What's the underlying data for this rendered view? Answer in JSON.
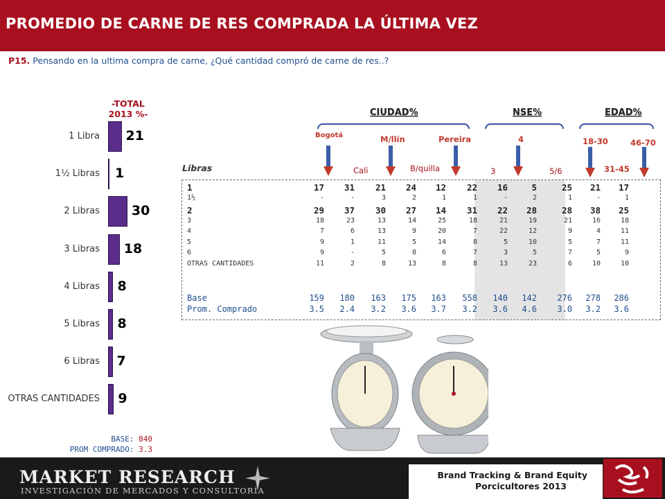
{
  "title": "PROMEDIO DE CARNE DE RES COMPRADA LA ÚLTIMA VEZ",
  "question": {
    "code": "P15.",
    "text": " Pensando en la ultima compra de carne, ¿Qué cantidad compró de carne de res..?"
  },
  "total_header": {
    "line1": "-TOTAL",
    "line2": "2013 %-"
  },
  "base_footer": {
    "base_label": "BASE:",
    "base_value": "840",
    "prom_label": "PROM COMPRADO:",
    "prom_value": "3.3"
  },
  "group_headers": {
    "ciudad": "CIUDAD%",
    "nse": "NSE%",
    "edad": "EDAD%"
  },
  "column_labels": {
    "bogota": "Bogotá",
    "cali": "Cali",
    "medellin": "M/llín",
    "barranquilla": "B/quilla",
    "pereira": "Pereira",
    "nse3": "3",
    "nse4": "4",
    "nse56": "5/6",
    "e1830": "18-30",
    "e3145": "31-45",
    "e4670": "46-70"
  },
  "table_title": "Libras",
  "table": {
    "rows": [
      {
        "label": "1",
        "style": "big",
        "values": [
          "17",
          "31",
          "21",
          "24",
          "12",
          "22",
          "16",
          "5",
          "25",
          "21",
          "17"
        ]
      },
      {
        "label": "1½",
        "style": "small",
        "values": [
          "-",
          "-",
          "3",
          "2",
          "1",
          "1",
          "-",
          "2",
          "1",
          "-",
          "1"
        ]
      },
      {
        "label": "2",
        "style": "big",
        "values": [
          "29",
          "37",
          "30",
          "27",
          "14",
          "31",
          "22",
          "28",
          "28",
          "38",
          "25"
        ]
      },
      {
        "label": "3",
        "style": "small",
        "values": [
          "18",
          "23",
          "13",
          "14",
          "25",
          "18",
          "21",
          "19",
          "21",
          "16",
          "18"
        ]
      },
      {
        "label": "4",
        "style": "small",
        "values": [
          "7",
          "6",
          "13",
          "9",
          "20",
          "7",
          "22",
          "12",
          "9",
          "4",
          "11"
        ]
      },
      {
        "label": "5",
        "style": "small",
        "values": [
          "9",
          "1",
          "11",
          "5",
          "14",
          "8",
          "5",
          "10",
          "5",
          "7",
          "11"
        ]
      },
      {
        "label": "6",
        "style": "small",
        "values": [
          "9",
          "-",
          "5",
          "8",
          "6",
          "7",
          "3",
          "5",
          "7",
          "5",
          "9"
        ]
      },
      {
        "label": "OTRAS CANTIDADES",
        "style": "small",
        "values": [
          "11",
          "2",
          "8",
          "13",
          "8",
          "8",
          "13",
          "23",
          "6",
          "10",
          "10"
        ]
      }
    ],
    "summary": [
      {
        "label": "Base",
        "values": [
          "159",
          "180",
          "163",
          "175",
          "163",
          "558",
          "140",
          "142",
          "276",
          "278",
          "286"
        ]
      },
      {
        "label": "Prom. Comprado",
        "values": [
          "3.5",
          "2.4",
          "3.2",
          "3.6",
          "3.7",
          "3.2",
          "3.6",
          "4.6",
          "3.0",
          "3.2",
          "3.6"
        ]
      }
    ]
  },
  "chart_data": {
    "type": "bar",
    "orientation": "horizontal",
    "title": "-TOTAL 2013 %-",
    "categories": [
      "1 Libra",
      "1½ Libras",
      "2 Libras",
      "3 Libras",
      "4 Libras",
      "5 Libras",
      "6 Libras",
      "OTRAS CANTIDADES"
    ],
    "values": [
      21,
      1,
      30,
      18,
      8,
      8,
      7,
      9
    ],
    "xlim": [
      0,
      32
    ],
    "grid": false,
    "bar_color": "#5a2d8a"
  },
  "footer": {
    "brand": "MARKET RESEARCH",
    "brand_sub": "INVESTIGACIÓN DE MERCADOS Y CONSULTORÍA",
    "tag_line1": "Brand Tracking & Brand Equity",
    "tag_line2": "Porcicultores 2013"
  },
  "colors": {
    "title_bg": "#a8101f",
    "accent_blue": "#1f4e8c",
    "bar": "#5a2d8a"
  }
}
